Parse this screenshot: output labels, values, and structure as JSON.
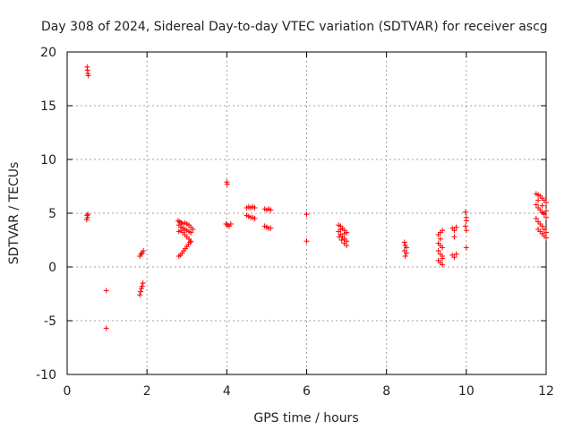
{
  "chart_data": {
    "type": "scatter",
    "title": "Day 308 of 2024, Sidereal Day-to-day VTEC variation (SDTVAR) for receiver ascg",
    "xlabel": "GPS time / hours",
    "ylabel": "SDTVAR / TECUs",
    "xlim": [
      0,
      12
    ],
    "ylim": [
      -10,
      20
    ],
    "xticks": [
      0,
      2,
      4,
      6,
      8,
      10,
      12
    ],
    "yticks": [
      -10,
      -5,
      0,
      5,
      10,
      15,
      20
    ],
    "grid": true,
    "marker": "+",
    "color": "#ff0000",
    "series": [
      {
        "name": "SDTVAR",
        "points": [
          [
            0.5,
            18.6
          ],
          [
            0.51,
            18.3
          ],
          [
            0.52,
            18.0
          ],
          [
            0.53,
            17.8
          ],
          [
            0.5,
            4.8
          ],
          [
            0.51,
            4.6
          ],
          [
            0.49,
            4.4
          ],
          [
            0.52,
            4.9
          ],
          [
            0.98,
            -2.2
          ],
          [
            0.98,
            -5.7
          ],
          [
            1.82,
            -2.6
          ],
          [
            1.84,
            -2.3
          ],
          [
            1.86,
            -2.0
          ],
          [
            1.88,
            -1.8
          ],
          [
            1.9,
            -1.5
          ],
          [
            1.82,
            1.0
          ],
          [
            1.85,
            1.2
          ],
          [
            1.88,
            1.3
          ],
          [
            1.91,
            1.5
          ],
          [
            2.78,
            4.3
          ],
          [
            2.82,
            4.2
          ],
          [
            2.86,
            4.1
          ],
          [
            2.9,
            4.0
          ],
          [
            2.95,
            4.1
          ],
          [
            3.0,
            4.0
          ],
          [
            3.05,
            3.9
          ],
          [
            3.1,
            3.7
          ],
          [
            3.15,
            3.5
          ],
          [
            2.8,
            3.9
          ],
          [
            2.85,
            3.7
          ],
          [
            2.9,
            3.6
          ],
          [
            2.95,
            3.5
          ],
          [
            3.0,
            3.4
          ],
          [
            3.05,
            3.3
          ],
          [
            3.1,
            3.2
          ],
          [
            2.8,
            3.3
          ],
          [
            2.85,
            3.4
          ],
          [
            2.9,
            3.2
          ],
          [
            2.95,
            3.0
          ],
          [
            3.0,
            2.8
          ],
          [
            3.05,
            2.6
          ],
          [
            3.1,
            2.4
          ],
          [
            2.8,
            1.0
          ],
          [
            2.84,
            1.1
          ],
          [
            2.88,
            1.3
          ],
          [
            2.92,
            1.5
          ],
          [
            2.96,
            1.7
          ],
          [
            3.0,
            1.9
          ],
          [
            3.04,
            2.1
          ],
          [
            3.08,
            2.3
          ],
          [
            4.0,
            7.9
          ],
          [
            4.01,
            7.7
          ],
          [
            3.98,
            4.0
          ],
          [
            4.02,
            3.9
          ],
          [
            4.06,
            3.8
          ],
          [
            4.1,
            4.0
          ],
          [
            4.5,
            5.5
          ],
          [
            4.55,
            5.6
          ],
          [
            4.6,
            5.5
          ],
          [
            4.65,
            5.6
          ],
          [
            4.7,
            5.5
          ],
          [
            4.5,
            4.8
          ],
          [
            4.55,
            4.7
          ],
          [
            4.6,
            4.6
          ],
          [
            4.65,
            4.6
          ],
          [
            4.7,
            4.5
          ],
          [
            4.95,
            5.4
          ],
          [
            5.0,
            5.3
          ],
          [
            5.05,
            5.4
          ],
          [
            5.1,
            5.3
          ],
          [
            4.95,
            3.8
          ],
          [
            5.0,
            3.7
          ],
          [
            5.05,
            3.6
          ],
          [
            5.1,
            3.6
          ],
          [
            6.0,
            4.9
          ],
          [
            6.0,
            2.4
          ],
          [
            6.8,
            3.9
          ],
          [
            6.85,
            3.8
          ],
          [
            6.9,
            3.6
          ],
          [
            6.95,
            3.4
          ],
          [
            7.0,
            3.2
          ],
          [
            6.8,
            3.3
          ],
          [
            6.85,
            3.0
          ],
          [
            6.9,
            2.8
          ],
          [
            6.95,
            2.6
          ],
          [
            7.0,
            2.4
          ],
          [
            6.82,
            2.8
          ],
          [
            6.88,
            2.5
          ],
          [
            6.94,
            2.2
          ],
          [
            7.0,
            2.0
          ],
          [
            6.85,
            3.5
          ],
          [
            6.95,
            3.1
          ],
          [
            8.45,
            2.3
          ],
          [
            8.47,
            2.0
          ],
          [
            8.5,
            1.8
          ],
          [
            8.45,
            1.5
          ],
          [
            8.5,
            1.3
          ],
          [
            8.47,
            1.0
          ],
          [
            9.3,
            3.0
          ],
          [
            9.35,
            3.2
          ],
          [
            9.4,
            3.4
          ],
          [
            9.3,
            2.2
          ],
          [
            9.35,
            2.0
          ],
          [
            9.4,
            1.8
          ],
          [
            9.3,
            1.5
          ],
          [
            9.35,
            1.2
          ],
          [
            9.4,
            1.0
          ],
          [
            9.3,
            0.6
          ],
          [
            9.35,
            0.4
          ],
          [
            9.4,
            0.2
          ],
          [
            9.35,
            2.6
          ],
          [
            9.4,
            0.8
          ],
          [
            9.65,
            3.6
          ],
          [
            9.7,
            3.4
          ],
          [
            9.75,
            3.7
          ],
          [
            9.7,
            2.8
          ],
          [
            9.65,
            1.1
          ],
          [
            9.7,
            0.9
          ],
          [
            9.75,
            1.2
          ],
          [
            9.98,
            5.1
          ],
          [
            10.0,
            4.6
          ],
          [
            10.0,
            4.3
          ],
          [
            9.98,
            3.8
          ],
          [
            10.0,
            3.4
          ],
          [
            10.0,
            1.8
          ],
          [
            11.75,
            6.8
          ],
          [
            11.8,
            6.7
          ],
          [
            11.85,
            6.6
          ],
          [
            11.9,
            6.4
          ],
          [
            11.95,
            6.2
          ],
          [
            12.0,
            6.0
          ],
          [
            11.75,
            5.8
          ],
          [
            11.8,
            5.5
          ],
          [
            11.85,
            5.3
          ],
          [
            11.9,
            5.1
          ],
          [
            11.95,
            4.9
          ],
          [
            12.0,
            4.6
          ],
          [
            11.75,
            4.5
          ],
          [
            11.8,
            4.2
          ],
          [
            11.85,
            4.0
          ],
          [
            11.9,
            3.8
          ],
          [
            11.95,
            3.5
          ],
          [
            12.0,
            3.2
          ],
          [
            11.8,
            3.5
          ],
          [
            11.85,
            3.3
          ],
          [
            11.9,
            3.1
          ],
          [
            11.95,
            2.9
          ],
          [
            12.0,
            2.7
          ],
          [
            11.8,
            6.2
          ],
          [
            11.9,
            5.7
          ],
          [
            12.0,
            5.2
          ]
        ]
      }
    ]
  }
}
